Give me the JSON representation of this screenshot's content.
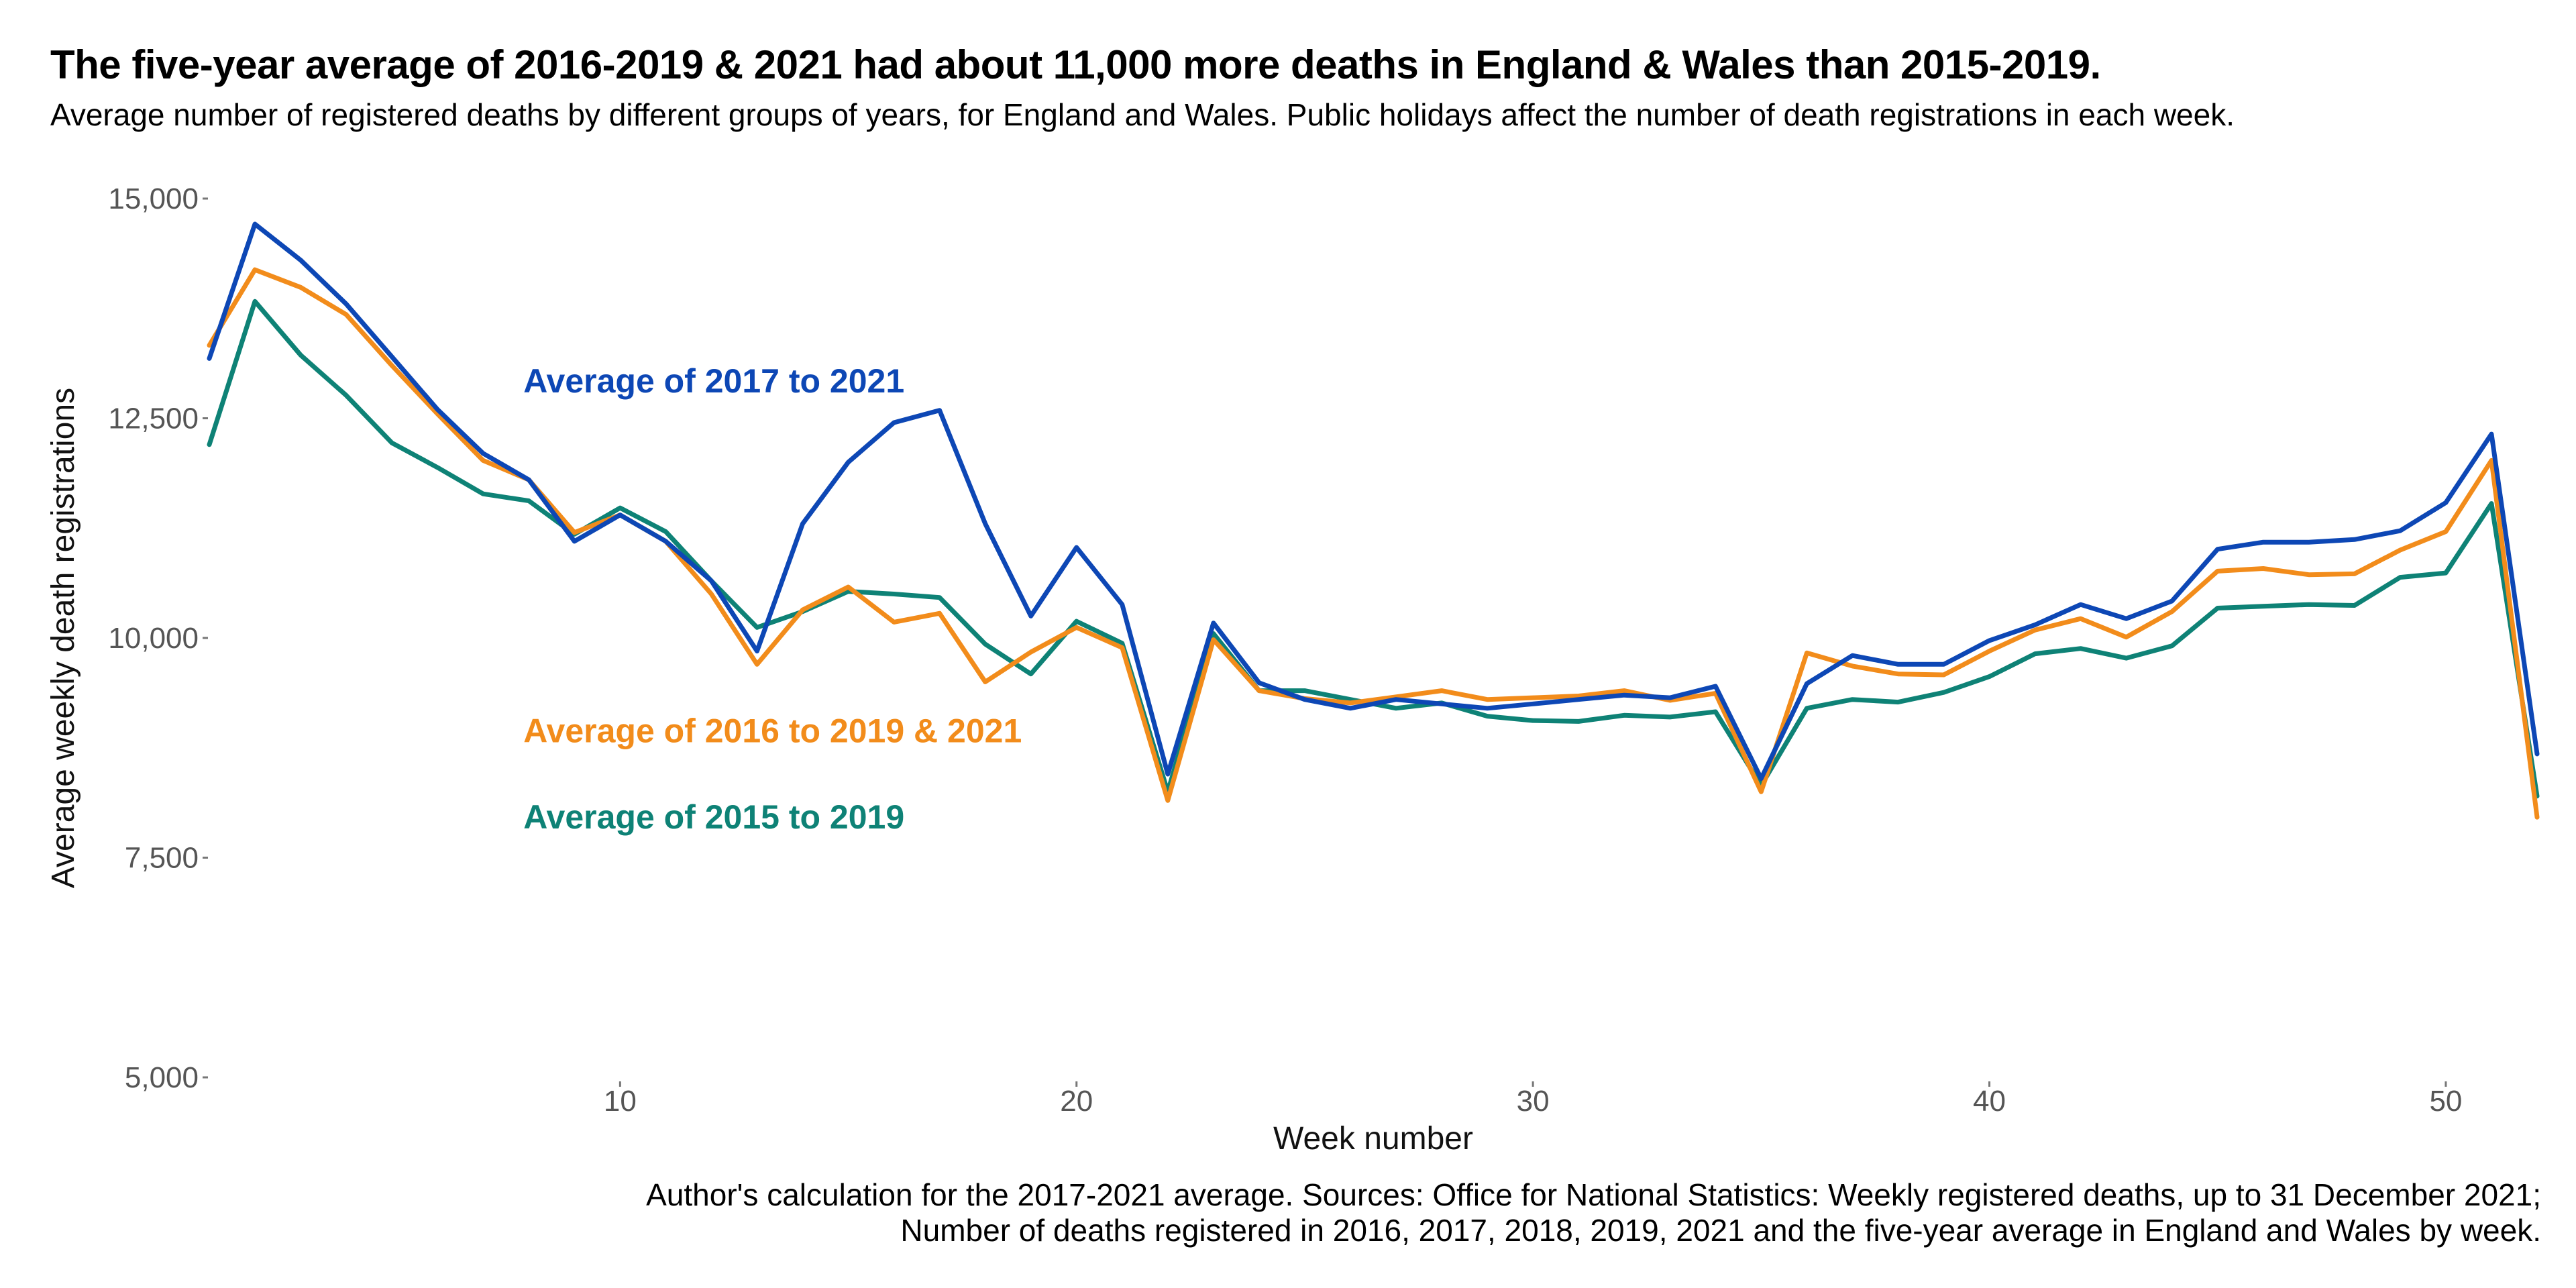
{
  "title": "The five-year average of 2016-2019 & 2021 had about 11,000 more deaths in England & Wales than 2015-2019.",
  "subtitle": "Average number of registered deaths by different groups of years, for England and Wales. Public holidays affect the number of death registrations in each week.",
  "source_line1": "Author's calculation for the 2017-2021 average. Sources: Office for National Statistics: Weekly registered deaths, up to 31 December 2021;",
  "source_line2": "Number of deaths registered in 2016, 2017, 2018, 2019, 2021 and the five-year average in England and Wales by week.",
  "chart_data": {
    "type": "line",
    "xlabel": "Week number",
    "ylabel": "Average weekly death registrations",
    "xlim": [
      1,
      52
    ],
    "ylim": [
      5000,
      15000
    ],
    "x_ticks": [
      10,
      20,
      30,
      40,
      50
    ],
    "x_tick_labels": [
      "10",
      "20",
      "30",
      "40",
      "50"
    ],
    "y_ticks": [
      5000,
      7500,
      10000,
      12500,
      15000
    ],
    "y_tick_labels": [
      "5,000",
      "7,500",
      "10,000",
      "12,500",
      "15,000"
    ],
    "grid": false,
    "legend": "direct labels",
    "x": [
      1,
      2,
      3,
      4,
      5,
      6,
      7,
      8,
      9,
      10,
      11,
      12,
      13,
      14,
      15,
      16,
      17,
      18,
      19,
      20,
      21,
      22,
      23,
      24,
      25,
      26,
      27,
      28,
      29,
      30,
      31,
      32,
      33,
      34,
      35,
      36,
      37,
      38,
      39,
      40,
      41,
      42,
      43,
      44,
      45,
      46,
      47,
      48,
      49,
      50,
      51,
      52
    ],
    "series": [
      {
        "name": "Average of 2017 to 2021",
        "color": "#0d47b5",
        "label_week": 8,
        "label_value": 12930,
        "values": [
          13180,
          14710,
          14300,
          13800,
          13200,
          12600,
          12100,
          11800,
          11100,
          11400,
          11100,
          10650,
          9850,
          11300,
          12000,
          12450,
          12590,
          11300,
          10250,
          11030,
          10380,
          8450,
          10170,
          9490,
          9300,
          9200,
          9300,
          9250,
          9200,
          9250,
          9300,
          9350,
          9320,
          9450,
          8400,
          9480,
          9800,
          9700,
          9700,
          9970,
          10150,
          10380,
          10220,
          10420,
          11010,
          11090,
          11090,
          11120,
          11220,
          11540,
          12320,
          8680
        ]
      },
      {
        "name": "Average of 2016 to 2019 & 2021",
        "color": "#f28c1b",
        "label_week": 8,
        "label_value": 8950,
        "values": [
          13330,
          14190,
          13990,
          13680,
          13100,
          12550,
          12020,
          11800,
          11200,
          11400,
          11100,
          10500,
          9700,
          10320,
          10580,
          10180,
          10280,
          9500,
          9840,
          10120,
          9890,
          8150,
          9980,
          9400,
          9310,
          9260,
          9330,
          9400,
          9300,
          9320,
          9340,
          9400,
          9290,
          9370,
          8250,
          9830,
          9680,
          9590,
          9580,
          9850,
          10090,
          10220,
          10010,
          10300,
          10760,
          10790,
          10720,
          10730,
          11000,
          11210,
          12020,
          7960
        ]
      },
      {
        "name": "Average of 2015 to 2019",
        "color": "#0e8276",
        "label_week": 8,
        "label_value": 7970,
        "values": [
          12200,
          13830,
          13220,
          12760,
          12220,
          11940,
          11640,
          11560,
          11180,
          11480,
          11210,
          10650,
          10120,
          10300,
          10530,
          10500,
          10460,
          9930,
          9590,
          10190,
          9940,
          8250,
          10050,
          9400,
          9400,
          9300,
          9200,
          9260,
          9110,
          9060,
          9050,
          9120,
          9100,
          9160,
          8320,
          9200,
          9300,
          9270,
          9380,
          9560,
          9820,
          9880,
          9770,
          9910,
          10340,
          10360,
          10380,
          10370,
          10690,
          10740,
          11530,
          8200
        ]
      }
    ]
  }
}
